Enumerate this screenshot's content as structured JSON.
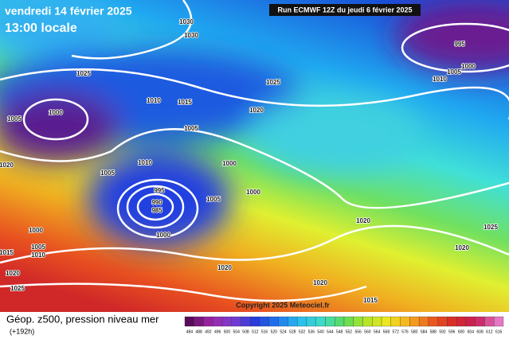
{
  "header": {
    "date": "vendredi 14 février 2025",
    "time": "13:00 locale",
    "run": "Run ECMWF 12Z du jeudi 6 février 2025"
  },
  "map": {
    "isobar_labels": [
      "1030",
      "1030",
      "1025",
      "1025",
      "1010",
      "1015",
      "1020",
      "1000",
      "1005",
      "1005",
      "995",
      "1000",
      "1005",
      "1010",
      "1010",
      "1000",
      "1005",
      "1020",
      "1000",
      "995",
      "990",
      "985",
      "1005",
      "1000",
      "1000",
      "1005",
      "1010",
      "1015",
      "1020",
      "1020",
      "1025",
      "1020",
      "1025",
      "1020",
      "1015",
      "1020"
    ],
    "copyright": "Copyright 2025 Meteociel.fr"
  },
  "footer": {
    "title": "Géop. z500, pression niveau mer",
    "lead": "(+192h)",
    "scale_labels": [
      "484",
      "488",
      "492",
      "496",
      "500",
      "504",
      "508",
      "512",
      "516",
      "520",
      "524",
      "528",
      "532",
      "536",
      "540",
      "544",
      "548",
      "552",
      "556",
      "560",
      "564",
      "568",
      "572",
      "576",
      "580",
      "584",
      "588",
      "592",
      "596",
      "600",
      "604",
      "608",
      "612",
      "616"
    ]
  }
}
